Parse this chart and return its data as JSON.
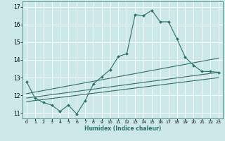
{
  "xlabel": "Humidex (Indice chaleur)",
  "bg_color": "#cce8e8",
  "grid_color": "#ffffff",
  "line_color": "#2d7068",
  "xlim": [
    -0.5,
    23.5
  ],
  "ylim": [
    10.7,
    17.3
  ],
  "yticks": [
    11,
    12,
    13,
    14,
    15,
    16,
    17
  ],
  "xticks": [
    0,
    1,
    2,
    3,
    4,
    5,
    6,
    7,
    8,
    9,
    10,
    11,
    12,
    13,
    14,
    15,
    16,
    17,
    18,
    19,
    20,
    21,
    22,
    23
  ],
  "line1_x": [
    0,
    1,
    2,
    3,
    4,
    5,
    6,
    7,
    8,
    9,
    10,
    11,
    12,
    13,
    14,
    15,
    16,
    17,
    18,
    19,
    20,
    21,
    22,
    23
  ],
  "line1_y": [
    12.75,
    11.85,
    11.6,
    11.45,
    11.1,
    11.45,
    10.95,
    11.7,
    12.65,
    13.05,
    13.45,
    14.2,
    14.35,
    16.55,
    16.5,
    16.8,
    16.15,
    16.15,
    15.2,
    14.15,
    13.7,
    13.35,
    13.35,
    13.3
  ],
  "line2_x": [
    0,
    23
  ],
  "line2_y": [
    11.85,
    13.3
  ],
  "line3_x": [
    0,
    23
  ],
  "line3_y": [
    12.1,
    14.1
  ],
  "line4_x": [
    0,
    23
  ],
  "line4_y": [
    11.65,
    13.0
  ]
}
